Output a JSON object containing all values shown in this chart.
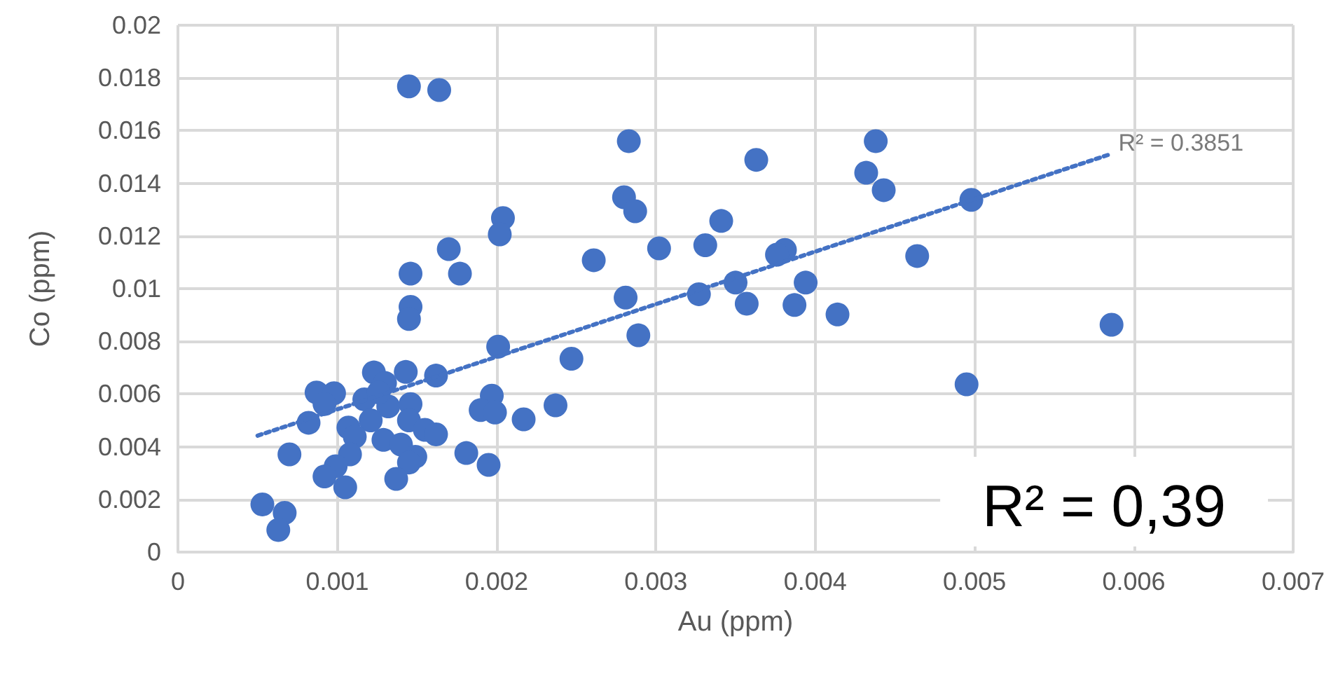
{
  "chart_data": {
    "type": "scatter",
    "xlabel": "Au (ppm)",
    "ylabel": "Co (ppm)",
    "xlim": [
      0,
      0.007
    ],
    "xticks": [
      0,
      0.001,
      0.002,
      0.003,
      0.004,
      0.005,
      0.006,
      0.007
    ],
    "ylim": [
      0,
      0.02
    ],
    "yticks": [
      0,
      0.002,
      0.004,
      0.006,
      0.008,
      0.01,
      0.012,
      0.014,
      0.016,
      0.018,
      0.02
    ],
    "grid": true,
    "series": [
      {
        "color": "#4472c4",
        "marker": "circle",
        "x": [
          0.00145,
          0.00164,
          0.00283,
          0.0028,
          0.00287,
          0.00204,
          0.00202,
          0.0017,
          0.00261,
          0.00146,
          0.00177,
          0.00281,
          0.00146,
          0.00145,
          0.00289,
          0.00201,
          0.00247,
          0.00123,
          0.0013,
          0.00143,
          0.00162,
          0.00087,
          0.00098,
          0.00092,
          0.00117,
          0.00132,
          0.00126,
          0.00146,
          0.00197,
          0.0019,
          0.00199,
          0.00237,
          0.00217,
          0.00082,
          0.00107,
          0.00121,
          0.00145,
          0.00155,
          0.00162,
          0.00111,
          0.00129,
          0.0014,
          0.00149,
          0.00145,
          0.00181,
          0.00195,
          0.0007,
          0.00108,
          0.00099,
          0.00092,
          0.00137,
          0.00105,
          0.00053,
          0.00067,
          0.00063,
          0.00363,
          0.00438,
          0.00432,
          0.00443,
          0.00341,
          0.00331,
          0.00302,
          0.00381,
          0.00376,
          0.00464,
          0.0035,
          0.00394,
          0.00327,
          0.00357,
          0.00387,
          0.00414,
          0.00498,
          0.00586,
          0.00495
        ],
        "values": [
          0.01768,
          0.01754,
          0.0156,
          0.01347,
          0.01294,
          0.01268,
          0.01206,
          0.0115,
          0.01108,
          0.01057,
          0.01057,
          0.00966,
          0.00931,
          0.00885,
          0.00823,
          0.0078,
          0.00734,
          0.00682,
          0.00642,
          0.00684,
          0.0067,
          0.00606,
          0.00603,
          0.00562,
          0.0058,
          0.00553,
          0.00606,
          0.00562,
          0.00594,
          0.00539,
          0.0053,
          0.00557,
          0.00504,
          0.00491,
          0.00473,
          0.005,
          0.005,
          0.00464,
          0.00447,
          0.00438,
          0.00426,
          0.00408,
          0.00362,
          0.0034,
          0.00376,
          0.00331,
          0.00371,
          0.00371,
          0.00326,
          0.00287,
          0.00278,
          0.00246,
          0.00181,
          0.00149,
          0.00084,
          0.01489,
          0.0156,
          0.0144,
          0.01374,
          0.01257,
          0.01165,
          0.01153,
          0.01147,
          0.01129,
          0.01124,
          0.01023,
          0.01023,
          0.00979,
          0.00943,
          0.00938,
          0.00902,
          0.01337,
          0.00863,
          0.00637
        ]
      },
      {
        "type": "line",
        "color": "#4472c4",
        "marker": "none",
        "line_style": "dotted",
        "x": [
          0.0005,
          0.00585
        ],
        "values": [
          0.00442,
          0.0151
        ]
      }
    ],
    "annotations": [
      {
        "text": "R² = 0.3851",
        "x": 0.00585,
        "y": 0.0151
      },
      "R² = 0,39"
    ]
  }
}
